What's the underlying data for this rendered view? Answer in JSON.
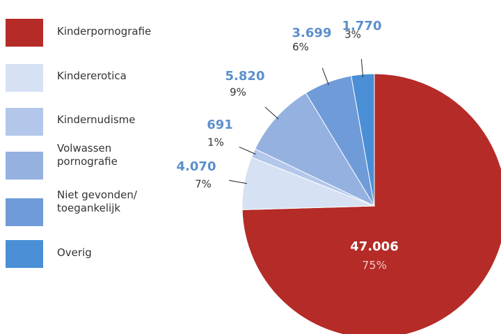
{
  "chart_data": {
    "type": "pie",
    "categories": [
      "Kinderpornografie",
      "Kindererotica",
      "Kindernudisme",
      "Volwassen\npornografie",
      "Niet gevonden/\ntoegankelijk",
      "Overig"
    ],
    "values": [
      47006,
      4070,
      691,
      5820,
      3699,
      1770
    ],
    "value_labels": [
      "47.006",
      "4.070",
      "691",
      "5.820",
      "3.699",
      "1.770"
    ],
    "percent_labels": [
      "75%",
      "7%",
      "1%",
      "9%",
      "6%",
      "3%"
    ],
    "colors": [
      "#b52b27",
      "#d6e1f4",
      "#b3c7ea",
      "#94b1e0",
      "#6f9bd8",
      "#4a8fd6"
    ],
    "legend": "left"
  }
}
